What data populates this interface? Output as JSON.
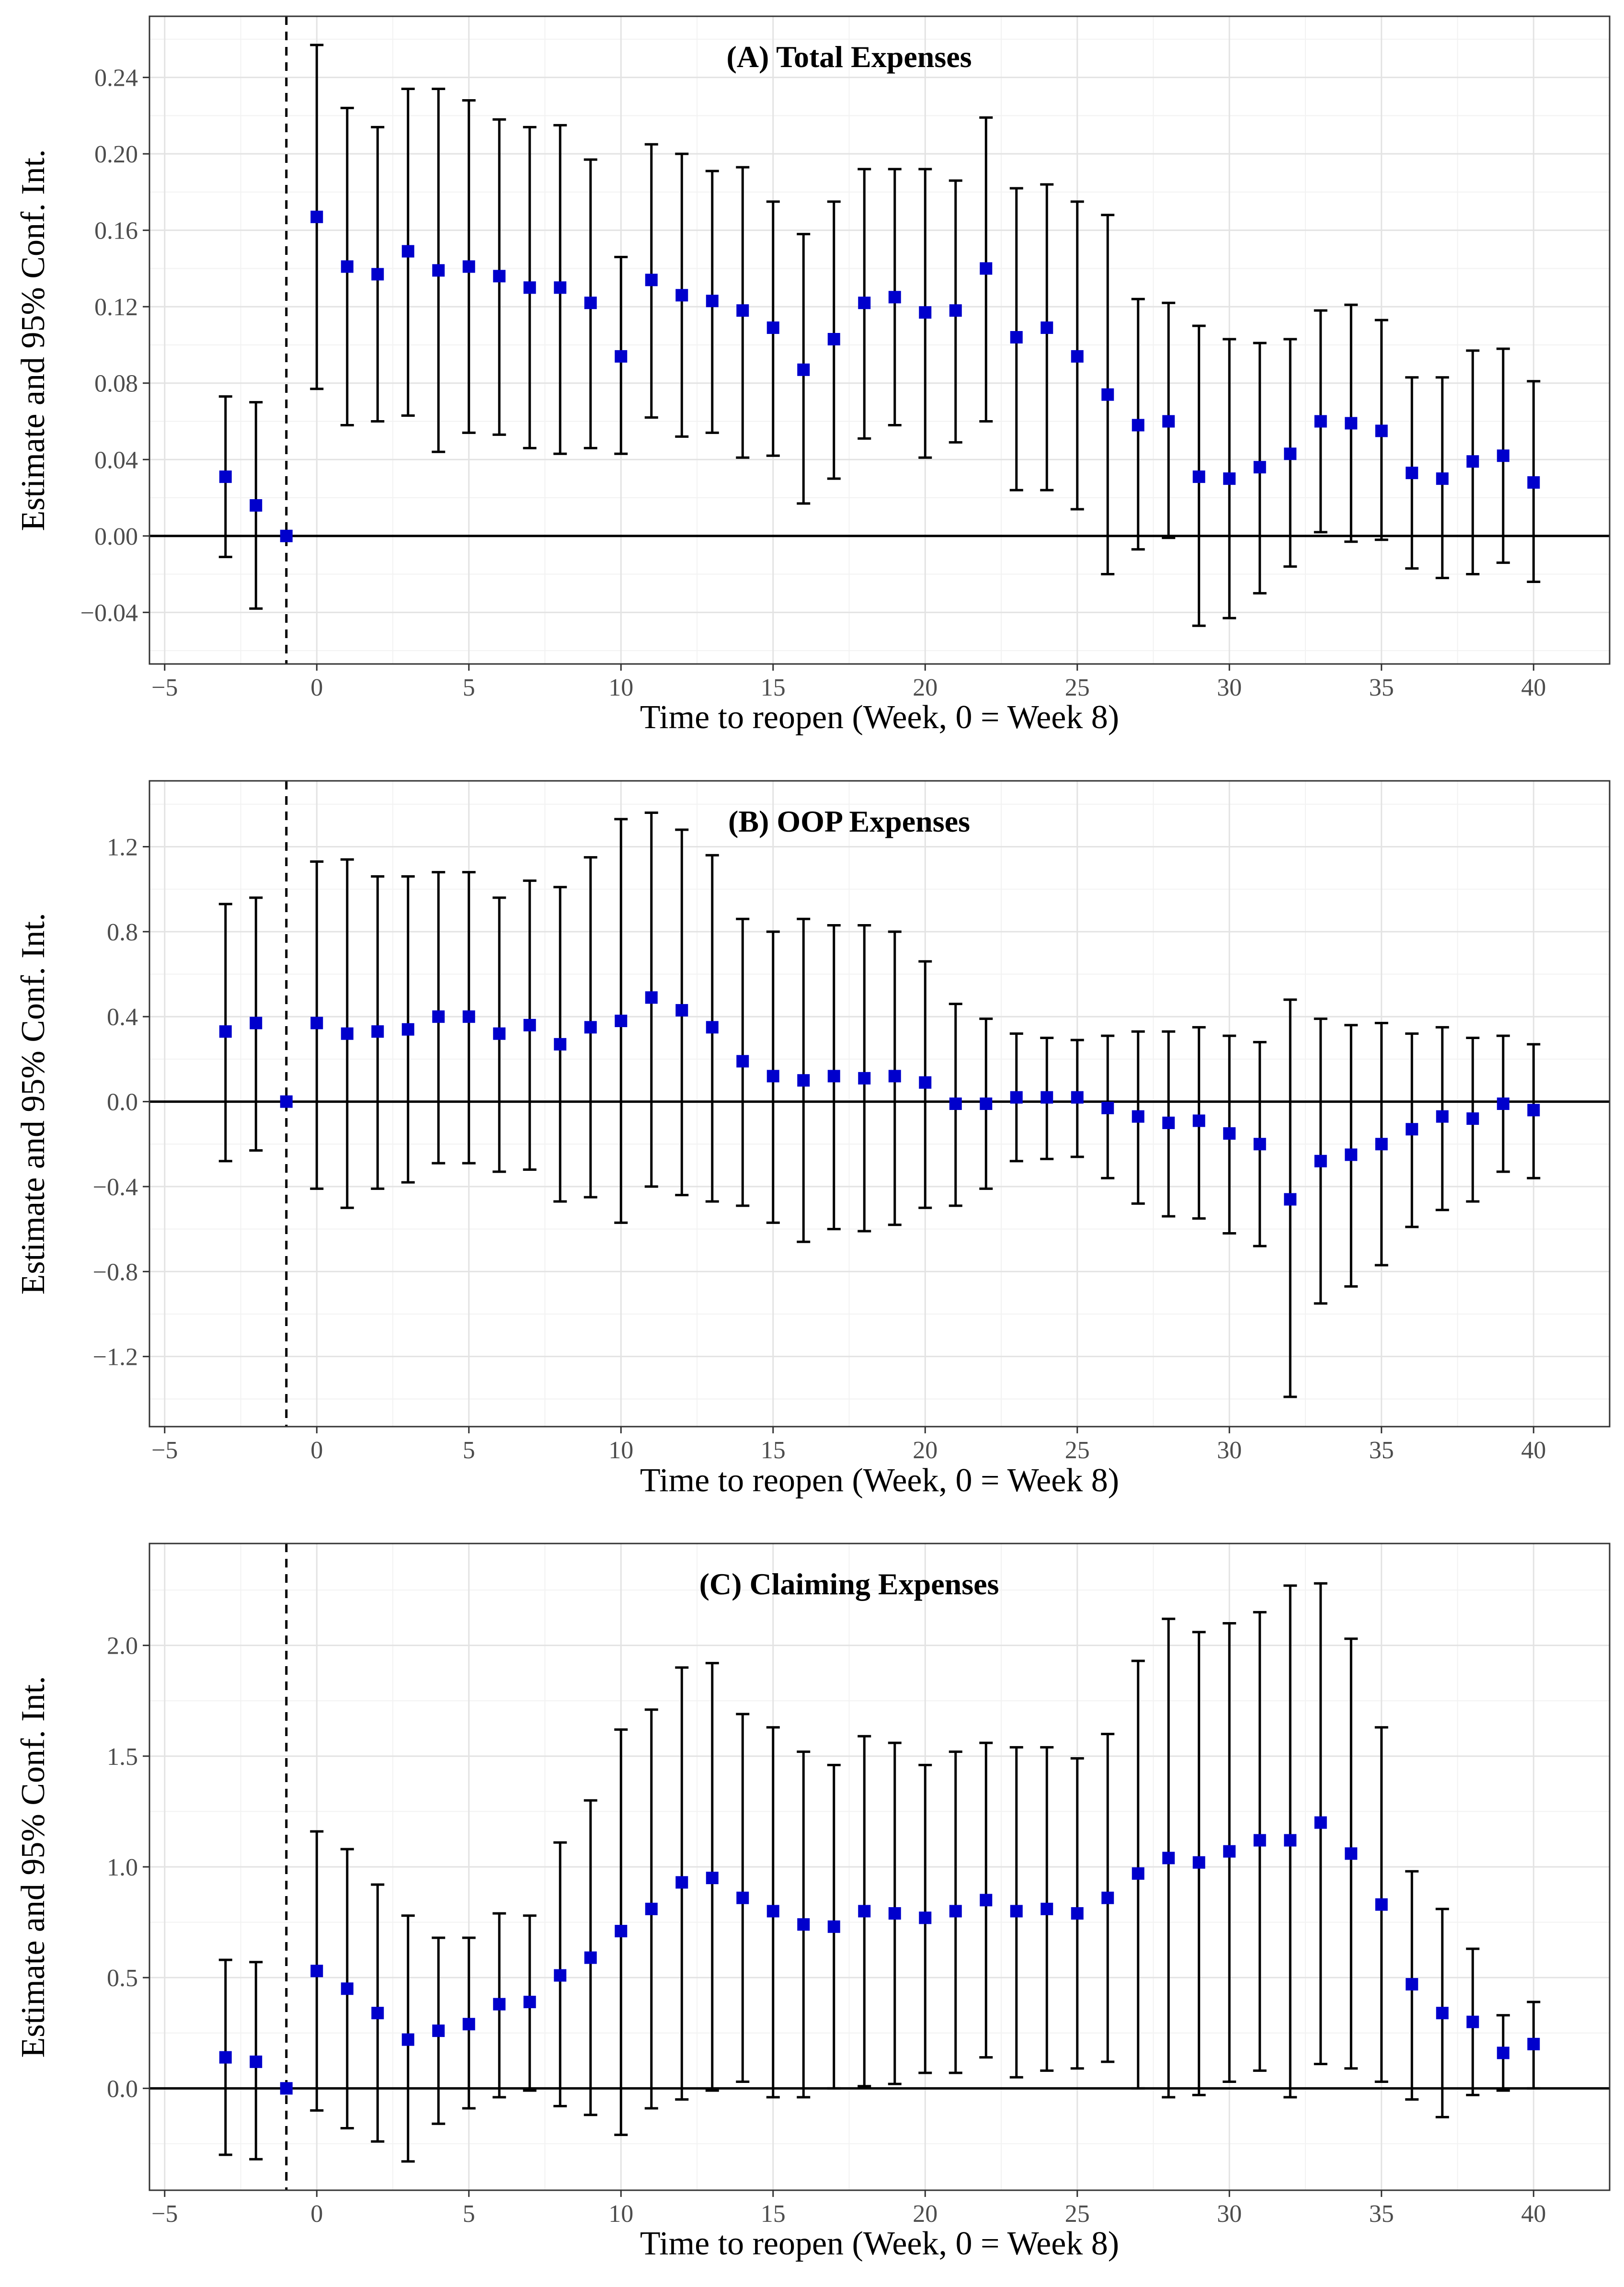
{
  "chart_data": [
    {
      "type": "scatter",
      "title": "(A) Total Expenses",
      "xlabel": "Time to reopen (Week, 0 = Week 8)",
      "ylabel": "Estimate and 95% Conf. Int.",
      "xlim": [
        -5.5,
        42.5
      ],
      "ylim": [
        -0.067,
        0.272
      ],
      "x_ticks": [
        -5,
        0,
        5,
        10,
        15,
        20,
        25,
        30,
        35,
        40
      ],
      "x_tick_labels": [
        "−5",
        "0",
        "5",
        "10",
        "15",
        "20",
        "25",
        "30",
        "35",
        "40"
      ],
      "y_ticks": [
        -0.04,
        0.0,
        0.04,
        0.08,
        0.12,
        0.16,
        0.2,
        0.24
      ],
      "y_tick_labels": [
        "−0.04",
        "0.00",
        "0.04",
        "0.08",
        "0.12",
        "0.16",
        "0.20",
        "0.24"
      ],
      "reference_x": -1,
      "reference_y": 0,
      "grid": true,
      "marker_color": "#0000cc",
      "series": [
        {
          "name": "Total Expenses",
          "x": [
            -3,
            -2,
            -1,
            0,
            1,
            2,
            3,
            4,
            5,
            6,
            7,
            8,
            9,
            10,
            11,
            12,
            13,
            14,
            15,
            16,
            17,
            18,
            19,
            20,
            21,
            22,
            23,
            24,
            25,
            26,
            27,
            28,
            29,
            30,
            31,
            32,
            33,
            34,
            35,
            36,
            37,
            38,
            39,
            40
          ],
          "estimate": [
            0.031,
            0.016,
            0.0,
            0.167,
            0.141,
            0.137,
            0.149,
            0.139,
            0.141,
            0.136,
            0.13,
            0.13,
            0.122,
            0.094,
            0.134,
            0.126,
            0.123,
            0.118,
            0.109,
            0.087,
            0.103,
            0.122,
            0.125,
            0.117,
            0.118,
            0.14,
            0.104,
            0.109,
            0.094,
            0.074,
            0.058,
            0.06,
            0.031,
            0.03,
            0.036,
            0.043,
            0.06,
            0.059,
            0.055,
            0.033,
            0.03,
            0.039,
            0.042,
            0.028
          ],
          "lower": [
            -0.011,
            -0.038,
            0.0,
            0.077,
            0.058,
            0.06,
            0.063,
            0.044,
            0.054,
            0.053,
            0.046,
            0.043,
            0.046,
            0.043,
            0.062,
            0.052,
            0.054,
            0.041,
            0.042,
            0.017,
            0.03,
            0.051,
            0.058,
            0.041,
            0.049,
            0.06,
            0.024,
            0.024,
            0.014,
            -0.02,
            -0.007,
            -0.001,
            -0.047,
            -0.043,
            -0.03,
            -0.016,
            0.002,
            -0.003,
            -0.002,
            -0.017,
            -0.022,
            -0.02,
            -0.014,
            -0.024
          ],
          "upper": [
            0.073,
            0.07,
            0.0,
            0.257,
            0.224,
            0.214,
            0.234,
            0.234,
            0.228,
            0.218,
            0.214,
            0.215,
            0.197,
            0.146,
            0.205,
            0.2,
            0.191,
            0.193,
            0.175,
            0.158,
            0.175,
            0.192,
            0.192,
            0.192,
            0.186,
            0.219,
            0.182,
            0.184,
            0.175,
            0.168,
            0.124,
            0.122,
            0.11,
            0.103,
            0.101,
            0.103,
            0.118,
            0.121,
            0.113,
            0.083,
            0.083,
            0.097,
            0.098,
            0.081
          ]
        }
      ]
    },
    {
      "type": "scatter",
      "title": "(B) OOP Expenses",
      "xlabel": "Time to reopen (Week, 0 = Week 8)",
      "ylabel": "Estimate and 95% Conf. Int.",
      "xlim": [
        -5.5,
        42.5
      ],
      "ylim": [
        -1.53,
        1.51
      ],
      "x_ticks": [
        -5,
        0,
        5,
        10,
        15,
        20,
        25,
        30,
        35,
        40
      ],
      "x_tick_labels": [
        "−5",
        "0",
        "5",
        "10",
        "15",
        "20",
        "25",
        "30",
        "35",
        "40"
      ],
      "y_ticks": [
        -1.2,
        -0.8,
        -0.4,
        0.0,
        0.4,
        0.8,
        1.2
      ],
      "y_tick_labels": [
        "−1.2",
        "−0.8",
        "−0.4",
        "0.0",
        "0.4",
        "0.8",
        "1.2"
      ],
      "reference_x": -1,
      "reference_y": 0,
      "grid": true,
      "marker_color": "#0000cc",
      "series": [
        {
          "name": "OOP Expenses",
          "x": [
            -3,
            -2,
            -1,
            0,
            1,
            2,
            3,
            4,
            5,
            6,
            7,
            8,
            9,
            10,
            11,
            12,
            13,
            14,
            15,
            16,
            17,
            18,
            19,
            20,
            21,
            22,
            23,
            24,
            25,
            26,
            27,
            28,
            29,
            30,
            31,
            32,
            33,
            34,
            35,
            36,
            37,
            38,
            39,
            40
          ],
          "estimate": [
            0.33,
            0.37,
            0.0,
            0.37,
            0.32,
            0.33,
            0.34,
            0.4,
            0.4,
            0.32,
            0.36,
            0.27,
            0.35,
            0.38,
            0.49,
            0.43,
            0.35,
            0.19,
            0.12,
            0.1,
            0.12,
            0.11,
            0.12,
            0.09,
            -0.01,
            -0.01,
            0.02,
            0.02,
            0.02,
            -0.03,
            -0.07,
            -0.1,
            -0.09,
            -0.15,
            -0.2,
            -0.46,
            -0.28,
            -0.25,
            -0.2,
            -0.13,
            -0.07,
            -0.08,
            -0.01,
            -0.04
          ],
          "lower": [
            -0.28,
            -0.23,
            0.0,
            -0.41,
            -0.5,
            -0.41,
            -0.38,
            -0.29,
            -0.29,
            -0.33,
            -0.32,
            -0.47,
            -0.45,
            -0.57,
            -0.4,
            -0.44,
            -0.47,
            -0.49,
            -0.57,
            -0.66,
            -0.6,
            -0.61,
            -0.58,
            -0.5,
            -0.49,
            -0.41,
            -0.28,
            -0.27,
            -0.26,
            -0.36,
            -0.48,
            -0.54,
            -0.55,
            -0.62,
            -0.68,
            -1.39,
            -0.95,
            -0.87,
            -0.77,
            -0.59,
            -0.51,
            -0.47,
            -0.33,
            -0.36
          ],
          "upper": [
            0.93,
            0.96,
            0.0,
            1.13,
            1.14,
            1.06,
            1.06,
            1.08,
            1.08,
            0.96,
            1.04,
            1.01,
            1.15,
            1.33,
            1.36,
            1.28,
            1.16,
            0.86,
            0.8,
            0.86,
            0.83,
            0.83,
            0.8,
            0.66,
            0.46,
            0.39,
            0.32,
            0.3,
            0.29,
            0.31,
            0.33,
            0.33,
            0.35,
            0.31,
            0.28,
            0.48,
            0.39,
            0.36,
            0.37,
            0.32,
            0.35,
            0.3,
            0.31,
            0.27
          ]
        }
      ]
    },
    {
      "type": "scatter",
      "title": "(C) Claiming Expenses",
      "xlabel": "Time to reopen (Week, 0 = Week 8)",
      "ylabel": "Estimate and 95% Conf. Int.",
      "xlim": [
        -5.5,
        42.5
      ],
      "ylim": [
        -0.46,
        2.46
      ],
      "x_ticks": [
        -5,
        0,
        5,
        10,
        15,
        20,
        25,
        30,
        35,
        40
      ],
      "x_tick_labels": [
        "−5",
        "0",
        "5",
        "10",
        "15",
        "20",
        "25",
        "30",
        "35",
        "40"
      ],
      "y_ticks": [
        0.0,
        0.5,
        1.0,
        1.5,
        2.0
      ],
      "y_tick_labels": [
        "0.0",
        "0.5",
        "1.0",
        "1.5",
        "2.0"
      ],
      "reference_x": -1,
      "reference_y": 0,
      "grid": true,
      "marker_color": "#0000cc",
      "series": [
        {
          "name": "Claiming Expenses",
          "x": [
            -3,
            -2,
            -1,
            0,
            1,
            2,
            3,
            4,
            5,
            6,
            7,
            8,
            9,
            10,
            11,
            12,
            13,
            14,
            15,
            16,
            17,
            18,
            19,
            20,
            21,
            22,
            23,
            24,
            25,
            26,
            27,
            28,
            29,
            30,
            31,
            32,
            33,
            34,
            35,
            36,
            37,
            38,
            39,
            40
          ],
          "estimate": [
            0.14,
            0.12,
            0.0,
            0.53,
            0.45,
            0.34,
            0.22,
            0.26,
            0.29,
            0.38,
            0.39,
            0.51,
            0.59,
            0.71,
            0.81,
            0.93,
            0.95,
            0.86,
            0.8,
            0.74,
            0.73,
            0.8,
            0.79,
            0.77,
            0.8,
            0.85,
            0.8,
            0.81,
            0.79,
            0.86,
            0.97,
            1.04,
            1.02,
            1.07,
            1.12,
            1.12,
            1.2,
            1.06,
            0.83,
            0.47,
            0.34,
            0.3,
            0.16,
            0.2
          ],
          "lower": [
            -0.3,
            -0.32,
            0.0,
            -0.1,
            -0.18,
            -0.24,
            -0.33,
            -0.16,
            -0.09,
            -0.04,
            -0.01,
            -0.08,
            -0.12,
            -0.21,
            -0.09,
            -0.05,
            -0.01,
            0.03,
            -0.04,
            -0.04,
            0.0,
            0.01,
            0.02,
            0.07,
            0.07,
            0.14,
            0.05,
            0.08,
            0.09,
            0.12,
            0.0,
            -0.04,
            -0.03,
            0.03,
            0.08,
            -0.04,
            0.11,
            0.09,
            0.03,
            -0.05,
            -0.13,
            -0.03,
            -0.01,
            0.0
          ],
          "upper": [
            0.58,
            0.57,
            0.0,
            1.16,
            1.08,
            0.92,
            0.78,
            0.68,
            0.68,
            0.79,
            0.78,
            1.11,
            1.3,
            1.62,
            1.71,
            1.9,
            1.92,
            1.69,
            1.63,
            1.52,
            1.46,
            1.59,
            1.56,
            1.46,
            1.52,
            1.56,
            1.54,
            1.54,
            1.49,
            1.6,
            1.93,
            2.12,
            2.06,
            2.1,
            2.15,
            2.27,
            2.28,
            2.03,
            1.63,
            0.98,
            0.81,
            0.63,
            0.33,
            0.39
          ]
        }
      ]
    }
  ]
}
